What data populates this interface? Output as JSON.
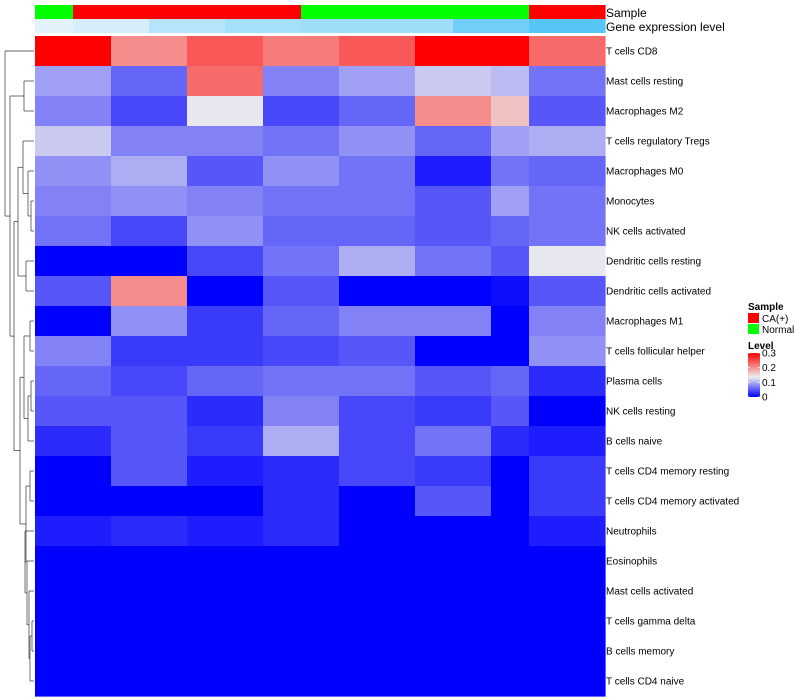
{
  "chart_data": {
    "type": "heatmap",
    "annotation_labels": {
      "sample": "Sample",
      "gene_expression": "Gene expression level"
    },
    "sample_groups": [
      "Normal",
      "CA(+)",
      "CA(+)",
      "CA(+)",
      "CA(+)",
      "CA(+)",
      "CA(+)",
      "Normal",
      "Normal",
      "Normal",
      "Normal",
      "Normal",
      "Normal",
      "CA(+)",
      "CA(+)"
    ],
    "gene_expression_levels": [
      0.08,
      0.15,
      0.15,
      0.35,
      0.35,
      0.45,
      0.45,
      0.5,
      0.5,
      0.5,
      0.5,
      0.78,
      0.78,
      0.95,
      0.95
    ],
    "rows": [
      "T cells CD8",
      "Mast cells resting",
      "Macrophages M2",
      "T cells regulatory  Tregs",
      "Macrophages M0",
      "Monocytes",
      "NK cells activated",
      "Dendritic cells resting",
      "Dendritic cells activated",
      "Macrophages M1",
      "T cells follicular helper",
      "Plasma cells",
      "NK cells resting",
      "B cells naive",
      "T cells CD4 memory resting",
      "T cells CD4 memory activated",
      "Neutrophils",
      "Eosinophils",
      "Mast cells activated",
      "T cells gamma delta",
      "B cells memory",
      "T cells CD4 naive"
    ],
    "values": [
      [
        0.3,
        0.3,
        0.22,
        0.22,
        0.25,
        0.25,
        0.23,
        0.23,
        0.25,
        0.25,
        0.3,
        0.3,
        0.3,
        0.24,
        0.24
      ],
      [
        0.11,
        0.11,
        0.07,
        0.07,
        0.24,
        0.24,
        0.09,
        0.09,
        0.11,
        0.11,
        0.14,
        0.14,
        0.13,
        0.08,
        0.08
      ],
      [
        0.09,
        0.09,
        0.05,
        0.05,
        0.16,
        0.16,
        0.05,
        0.05,
        0.07,
        0.07,
        0.22,
        0.22,
        0.19,
        0.06,
        0.06
      ],
      [
        0.14,
        0.14,
        0.09,
        0.09,
        0.09,
        0.09,
        0.08,
        0.08,
        0.1,
        0.1,
        0.07,
        0.07,
        0.11,
        0.12,
        0.12
      ],
      [
        0.1,
        0.1,
        0.12,
        0.12,
        0.06,
        0.06,
        0.1,
        0.1,
        0.08,
        0.08,
        0.02,
        0.02,
        0.08,
        0.07,
        0.07
      ],
      [
        0.09,
        0.09,
        0.1,
        0.1,
        0.09,
        0.09,
        0.08,
        0.08,
        0.08,
        0.08,
        0.06,
        0.06,
        0.11,
        0.08,
        0.08
      ],
      [
        0.08,
        0.08,
        0.05,
        0.05,
        0.1,
        0.1,
        0.07,
        0.07,
        0.07,
        0.07,
        0.06,
        0.06,
        0.07,
        0.08,
        0.08
      ],
      [
        0.0,
        0.0,
        0.0,
        0.0,
        0.05,
        0.05,
        0.08,
        0.08,
        0.12,
        0.12,
        0.08,
        0.08,
        0.06,
        0.16,
        0.16
      ],
      [
        0.06,
        0.06,
        0.22,
        0.22,
        0.0,
        0.0,
        0.06,
        0.06,
        0.0,
        0.0,
        0.0,
        0.0,
        0.01,
        0.06,
        0.06
      ],
      [
        0.0,
        0.0,
        0.1,
        0.1,
        0.04,
        0.04,
        0.07,
        0.07,
        0.09,
        0.09,
        0.09,
        0.09,
        0.0,
        0.09,
        0.09
      ],
      [
        0.09,
        0.09,
        0.04,
        0.04,
        0.04,
        0.04,
        0.05,
        0.05,
        0.06,
        0.06,
        0.0,
        0.0,
        0.0,
        0.1,
        0.1
      ],
      [
        0.07,
        0.07,
        0.05,
        0.05,
        0.07,
        0.07,
        0.08,
        0.08,
        0.08,
        0.08,
        0.06,
        0.06,
        0.07,
        0.03,
        0.03
      ],
      [
        0.06,
        0.06,
        0.06,
        0.06,
        0.03,
        0.03,
        0.09,
        0.09,
        0.05,
        0.05,
        0.04,
        0.04,
        0.06,
        0.0,
        0.0
      ],
      [
        0.03,
        0.03,
        0.06,
        0.06,
        0.04,
        0.04,
        0.12,
        0.12,
        0.05,
        0.05,
        0.08,
        0.08,
        0.03,
        0.02,
        0.02
      ],
      [
        0.0,
        0.0,
        0.06,
        0.06,
        0.02,
        0.02,
        0.03,
        0.03,
        0.05,
        0.05,
        0.04,
        0.04,
        0.0,
        0.04,
        0.04
      ],
      [
        0.0,
        0.0,
        0.0,
        0.0,
        0.0,
        0.0,
        0.03,
        0.03,
        0.0,
        0.0,
        0.06,
        0.06,
        0.0,
        0.04,
        0.04
      ],
      [
        0.02,
        0.02,
        0.03,
        0.03,
        0.02,
        0.02,
        0.03,
        0.03,
        0.0,
        0.0,
        0.0,
        0.0,
        0.0,
        0.02,
        0.02
      ],
      [
        0.0,
        0.0,
        0.0,
        0.0,
        0.0,
        0.0,
        0.0,
        0.0,
        0.0,
        0.0,
        0.0,
        0.0,
        0.0,
        0.0,
        0.0
      ],
      [
        0.0,
        0.0,
        0.0,
        0.0,
        0.0,
        0.0,
        0.0,
        0.0,
        0.0,
        0.0,
        0.0,
        0.0,
        0.0,
        0.0,
        0.0
      ],
      [
        0.0,
        0.0,
        0.0,
        0.0,
        0.0,
        0.0,
        0.0,
        0.0,
        0.0,
        0.0,
        0.0,
        0.0,
        0.0,
        0.0,
        0.0
      ],
      [
        0.0,
        0.0,
        0.0,
        0.0,
        0.0,
        0.0,
        0.0,
        0.0,
        0.0,
        0.0,
        0.0,
        0.0,
        0.0,
        0.0,
        0.0
      ],
      [
        0.0,
        0.0,
        0.0,
        0.0,
        0.0,
        0.0,
        0.0,
        0.0,
        0.0,
        0.0,
        0.0,
        0.0,
        0.0,
        0.0,
        0.0
      ]
    ],
    "color_scale": {
      "min": 0,
      "max": 0.3,
      "low": "#0000ff",
      "mid": "#eeeeee",
      "high": "#ff0000"
    },
    "legend": {
      "sample_title": "Sample",
      "sample_entries": [
        {
          "label": "CA(+)",
          "color": "#ff0000"
        },
        {
          "label": "Normal",
          "color": "#00ff00"
        }
      ],
      "level_title": "Level",
      "level_ticks": [
        "0.3",
        "0.2",
        "0.1",
        "0"
      ],
      "level_tick_values": [
        0.3,
        0.2,
        0.1,
        0
      ]
    },
    "gene_expression_colors": {
      "low": "#eef6fb",
      "high": "#4fc3f7"
    },
    "dendrogram": true
  }
}
